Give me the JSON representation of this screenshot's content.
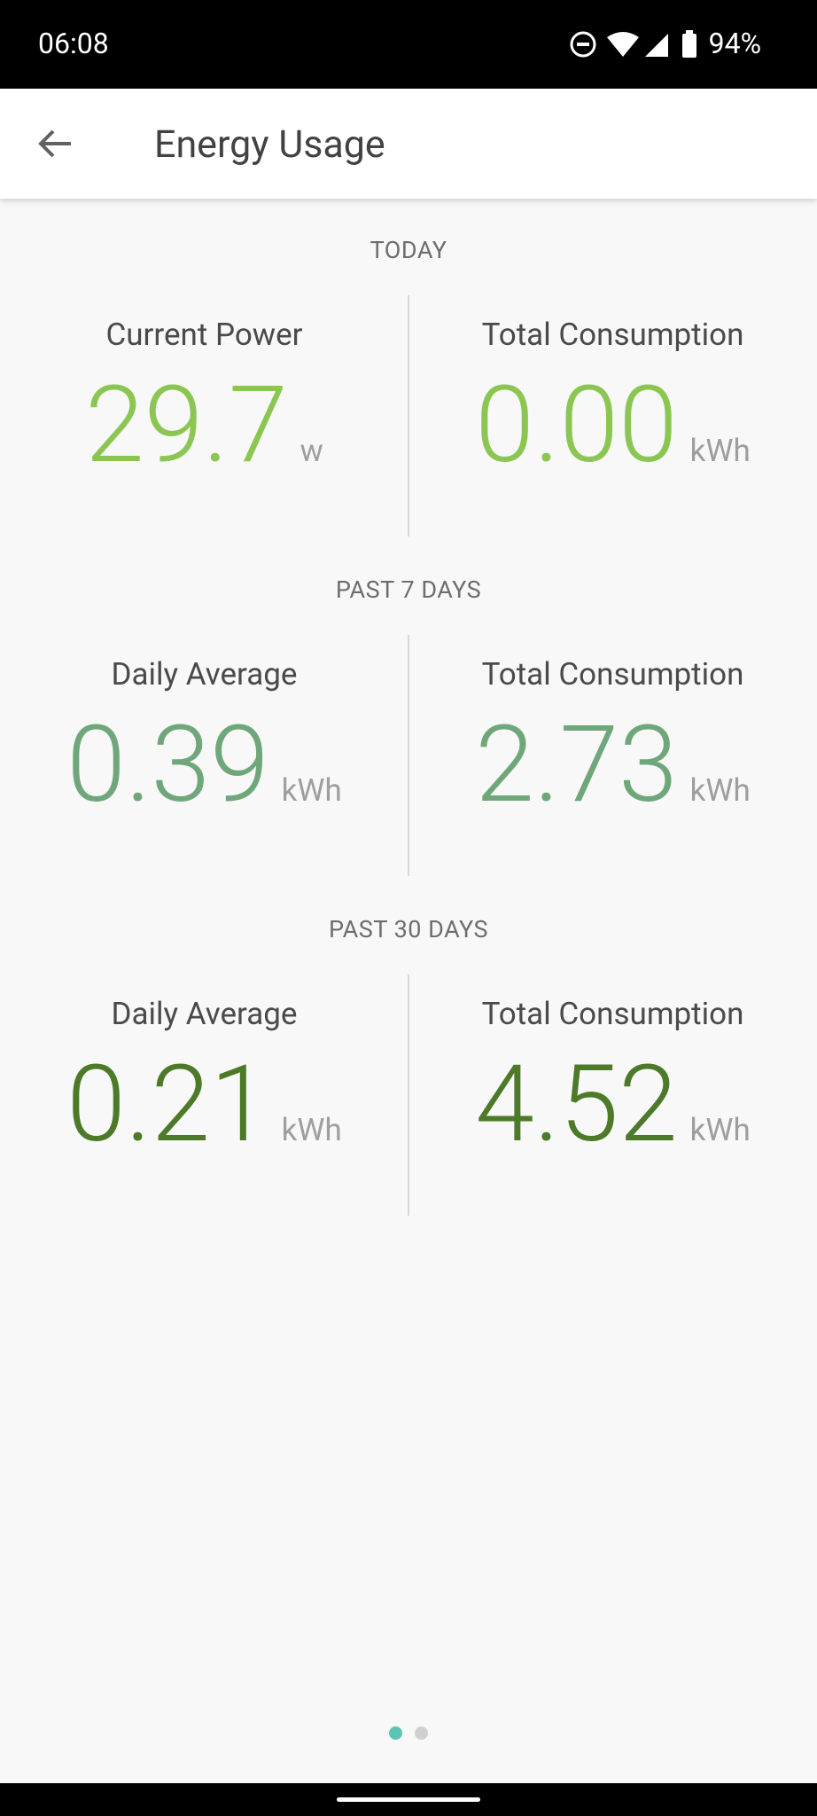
{
  "status_bar": {
    "time": "06:08",
    "battery": "94%"
  },
  "app_bar": {
    "title": "Energy Usage"
  },
  "sections": [
    {
      "heading": "TODAY",
      "items": [
        {
          "label": "Current Power",
          "value": "29.7",
          "unit": "w"
        },
        {
          "label": "Total Consumption",
          "value": "0.00",
          "unit": "kWh"
        }
      ]
    },
    {
      "heading": "PAST 7 DAYS",
      "items": [
        {
          "label": "Daily Average",
          "value": "0.39",
          "unit": "kWh"
        },
        {
          "label": "Total Consumption",
          "value": "2.73",
          "unit": "kWh"
        }
      ]
    },
    {
      "heading": "PAST 30 DAYS",
      "items": [
        {
          "label": "Daily Average",
          "value": "0.21",
          "unit": "kWh"
        },
        {
          "label": "Total Consumption",
          "value": "4.52",
          "unit": "kWh"
        }
      ]
    }
  ]
}
